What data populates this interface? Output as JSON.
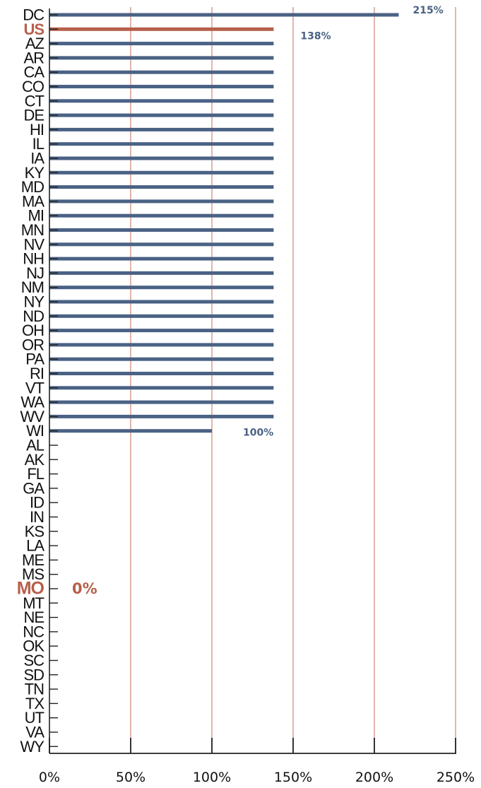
{
  "chart_data": {
    "type": "bar",
    "orientation": "horizontal",
    "categories": [
      "DC",
      "US",
      "AZ",
      "AR",
      "CA",
      "CO",
      "CT",
      "DE",
      "HI",
      "IL",
      "IA",
      "KY",
      "MD",
      "MA",
      "MI",
      "MN",
      "NV",
      "NH",
      "NJ",
      "NM",
      "NY",
      "ND",
      "OH",
      "OR",
      "PA",
      "RI",
      "VT",
      "WA",
      "WV",
      "WI",
      "AL",
      "AK",
      "FL",
      "GA",
      "ID",
      "IN",
      "KS",
      "LA",
      "ME",
      "MS",
      "MO",
      "MT",
      "NE",
      "NC",
      "OK",
      "SC",
      "SD",
      "TN",
      "TX",
      "UT",
      "VA",
      "WY"
    ],
    "values": [
      215,
      138,
      138,
      138,
      138,
      138,
      138,
      138,
      138,
      138,
      138,
      138,
      138,
      138,
      138,
      138,
      138,
      138,
      138,
      138,
      138,
      138,
      138,
      138,
      138,
      138,
      138,
      138,
      138,
      100,
      0,
      0,
      0,
      0,
      0,
      0,
      0,
      0,
      0,
      0,
      0,
      0,
      0,
      0,
      0,
      0,
      0,
      0,
      0,
      0,
      0,
      0
    ],
    "highlighted": [
      "US",
      "MO"
    ],
    "data_labels": [
      {
        "category": "DC",
        "text": "215%"
      },
      {
        "category": "US",
        "text": "138%"
      },
      {
        "category": "WI",
        "text": "100%"
      },
      {
        "category": "MO",
        "text": "0%"
      }
    ],
    "x_ticks": [
      0,
      50,
      100,
      150,
      200,
      250
    ],
    "x_tick_labels": [
      "0%",
      "50%",
      "100%",
      "150%",
      "200%",
      "250%"
    ],
    "xlim": [
      0,
      250
    ],
    "grid": "vertical",
    "title": "",
    "xlabel": "",
    "ylabel": ""
  },
  "colors": {
    "bar": "#4a6284",
    "highlight": "#b65f4a",
    "gridline": "#d8a394",
    "axis": "#222222"
  }
}
